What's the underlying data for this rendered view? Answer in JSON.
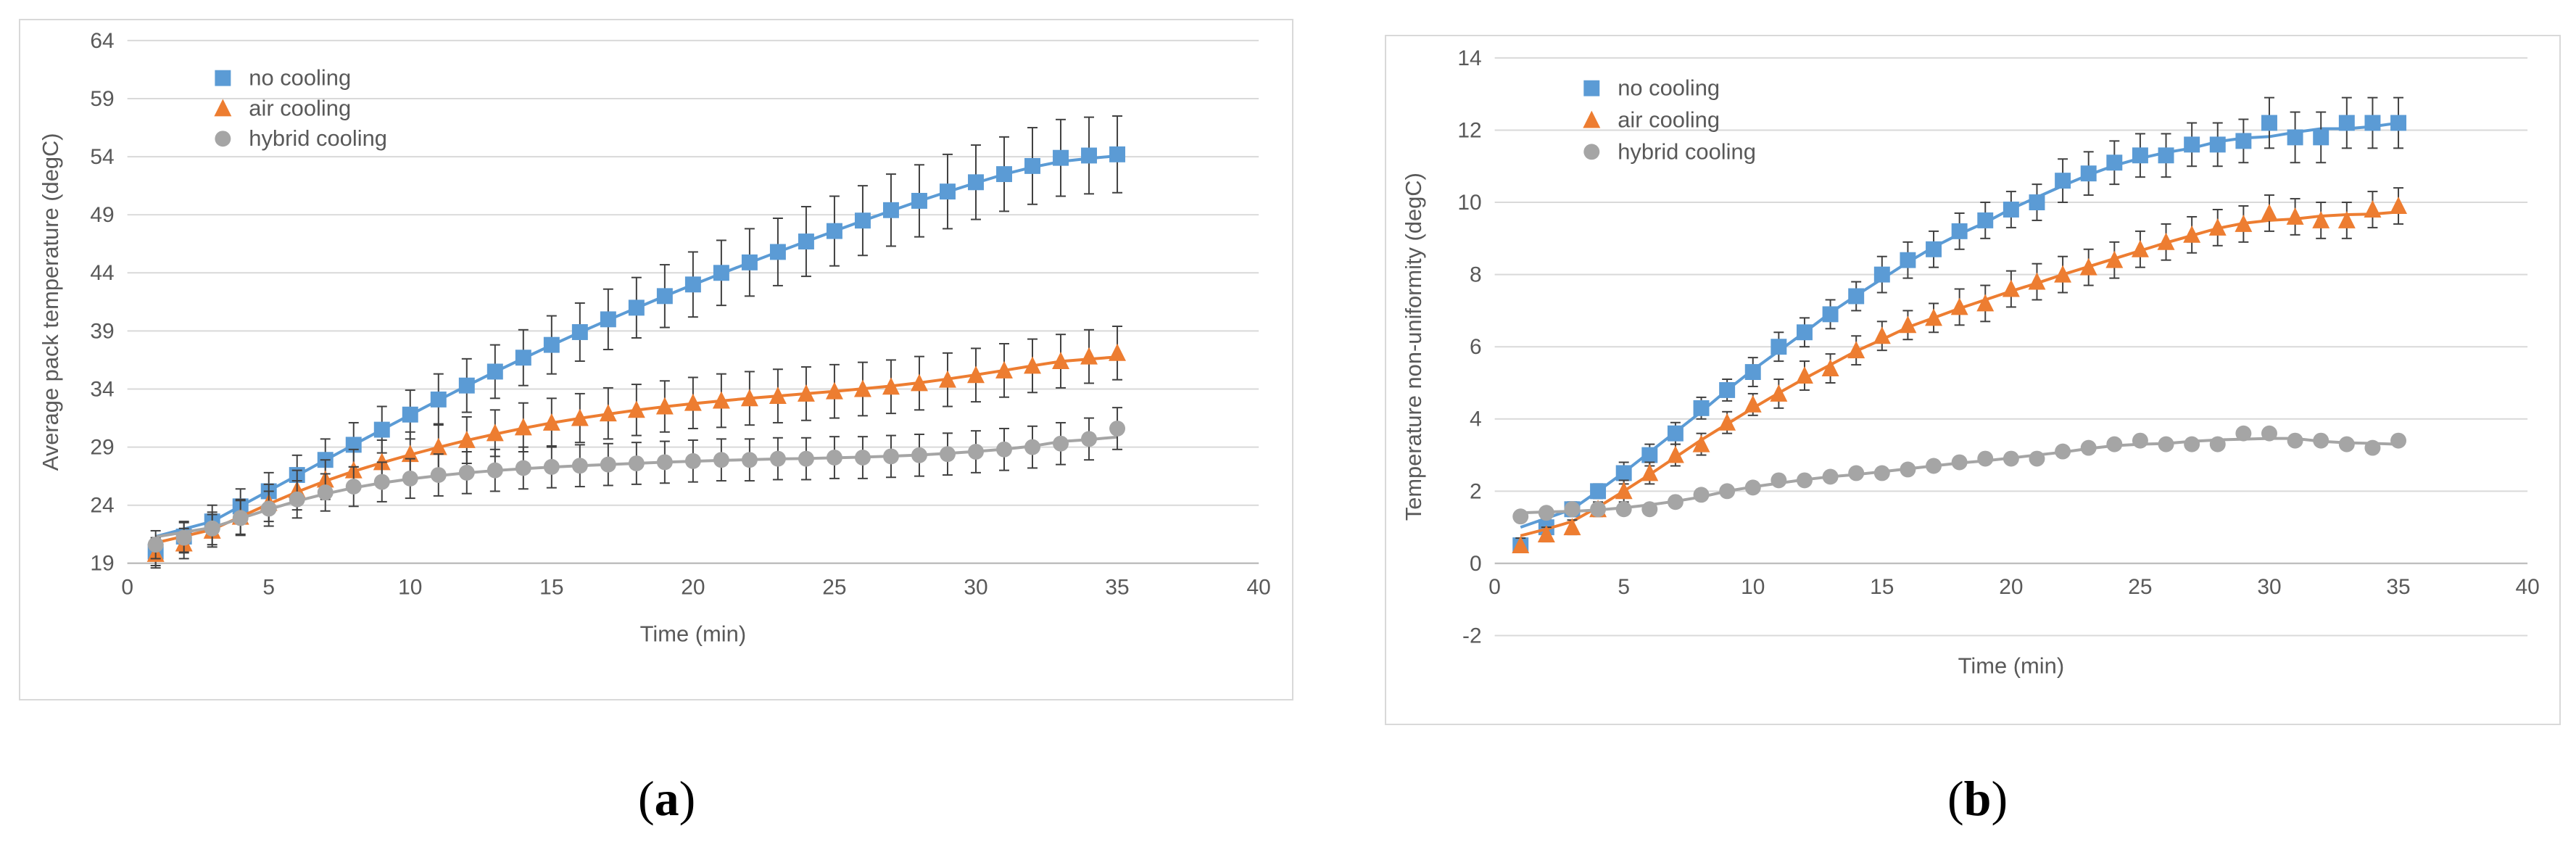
{
  "colors": {
    "no_cooling": "#5b9bd5",
    "air_cooling": "#ed7d31",
    "hybrid_cooling": "#a5a5a5",
    "grid": "#d9d9d9",
    "axis": "#bfbfbf",
    "errorbar": "#404040"
  },
  "captions": {
    "a": "a",
    "b": "b"
  },
  "chart_data": [
    {
      "id": "a",
      "type": "scatter",
      "title": "",
      "xlabel": "Time (min)",
      "ylabel": "Average pack temperature (degC)",
      "xlim": [
        0,
        40
      ],
      "ylim": [
        19,
        64
      ],
      "xticks": [
        0,
        5,
        10,
        15,
        20,
        25,
        30,
        35,
        40
      ],
      "yticks": [
        19,
        24,
        29,
        34,
        39,
        44,
        49,
        54,
        59,
        64
      ],
      "legend_position": "top-left",
      "x": [
        1,
        2,
        3,
        4,
        5,
        6,
        7,
        8,
        9,
        10,
        11,
        12,
        13,
        14,
        15,
        16,
        17,
        18,
        19,
        20,
        21,
        22,
        23,
        24,
        25,
        26,
        27,
        28,
        29,
        30,
        31,
        32,
        33,
        34,
        35
      ],
      "series": [
        {
          "name": "no cooling",
          "marker": "square",
          "values": [
            20,
            21.3,
            22.6,
            23.9,
            25.2,
            26.6,
            27.9,
            29.2,
            30.5,
            31.8,
            33.1,
            34.3,
            35.5,
            36.7,
            37.8,
            38.9,
            40.0,
            41.0,
            42.0,
            43.0,
            44.0,
            44.9,
            45.8,
            46.7,
            47.6,
            48.5,
            49.4,
            50.2,
            51.0,
            51.8,
            52.5,
            53.2,
            53.9,
            54.1,
            54.2
          ],
          "errors": [
            1.2,
            1.3,
            1.4,
            1.5,
            1.6,
            1.7,
            1.8,
            1.9,
            2.0,
            2.1,
            2.2,
            2.3,
            2.3,
            2.4,
            2.5,
            2.5,
            2.6,
            2.6,
            2.7,
            2.8,
            2.8,
            2.9,
            2.9,
            3.0,
            3.0,
            3.0,
            3.1,
            3.1,
            3.2,
            3.2,
            3.2,
            3.3,
            3.3,
            3.3,
            3.3
          ]
        },
        {
          "name": "air cooling",
          "marker": "triangle",
          "values": [
            19.8,
            20.7,
            21.8,
            23.0,
            24.2,
            25.3,
            26.2,
            27.0,
            27.7,
            28.4,
            29.0,
            29.6,
            30.2,
            30.7,
            31.1,
            31.5,
            31.9,
            32.2,
            32.5,
            32.8,
            33.0,
            33.2,
            33.4,
            33.6,
            33.8,
            34.0,
            34.2,
            34.5,
            34.8,
            35.2,
            35.6,
            36.0,
            36.4,
            36.8,
            37.1
          ],
          "errors": [
            1.2,
            1.3,
            1.4,
            1.5,
            1.6,
            1.7,
            1.7,
            1.8,
            1.9,
            1.9,
            2.0,
            2.0,
            2.0,
            2.1,
            2.1,
            2.1,
            2.2,
            2.2,
            2.2,
            2.2,
            2.3,
            2.3,
            2.3,
            2.3,
            2.3,
            2.3,
            2.3,
            2.3,
            2.3,
            2.3,
            2.3,
            2.3,
            2.3,
            2.3,
            2.3
          ]
        },
        {
          "name": "hybrid cooling",
          "marker": "circle",
          "values": [
            20.6,
            21.2,
            22.0,
            22.9,
            23.7,
            24.5,
            25.1,
            25.6,
            26.0,
            26.3,
            26.6,
            26.8,
            27.0,
            27.2,
            27.3,
            27.4,
            27.5,
            27.6,
            27.7,
            27.8,
            27.9,
            27.9,
            28.0,
            28.0,
            28.1,
            28.1,
            28.2,
            28.3,
            28.4,
            28.6,
            28.8,
            29.0,
            29.3,
            29.7,
            30.6
          ],
          "errors": [
            1.2,
            1.3,
            1.4,
            1.5,
            1.5,
            1.6,
            1.6,
            1.7,
            1.7,
            1.7,
            1.8,
            1.8,
            1.8,
            1.8,
            1.8,
            1.8,
            1.8,
            1.8,
            1.8,
            1.8,
            1.8,
            1.8,
            1.8,
            1.8,
            1.8,
            1.8,
            1.8,
            1.8,
            1.8,
            1.8,
            1.8,
            1.8,
            1.8,
            1.8,
            1.8
          ]
        }
      ]
    },
    {
      "id": "b",
      "type": "scatter",
      "title": "",
      "xlabel": "Time (min)",
      "ylabel": "Temperature non-uniformity (degC)",
      "xlim": [
        0,
        40
      ],
      "ylim": [
        -2,
        14
      ],
      "xticks": [
        0,
        5,
        10,
        15,
        20,
        25,
        30,
        35,
        40
      ],
      "yticks": [
        -2,
        0,
        2,
        4,
        6,
        8,
        10,
        12,
        14
      ],
      "legend_position": "top-left",
      "x": [
        1,
        2,
        3,
        4,
        5,
        6,
        7,
        8,
        9,
        10,
        11,
        12,
        13,
        14,
        15,
        16,
        17,
        18,
        19,
        20,
        21,
        22,
        23,
        24,
        25,
        26,
        27,
        28,
        29,
        30,
        31,
        32,
        33,
        34,
        35
      ],
      "series": [
        {
          "name": "no cooling",
          "marker": "square",
          "values": [
            0.5,
            1.0,
            1.5,
            2.0,
            2.5,
            3.0,
            3.6,
            4.3,
            4.8,
            5.3,
            6.0,
            6.4,
            6.9,
            7.4,
            8.0,
            8.4,
            8.7,
            9.2,
            9.5,
            9.8,
            10.0,
            10.6,
            10.8,
            11.1,
            11.3,
            11.3,
            11.6,
            11.6,
            11.7,
            12.2,
            11.8,
            11.8,
            12.2,
            12.2,
            12.2
          ],
          "errors": [
            0.2,
            0.2,
            0.2,
            0.2,
            0.3,
            0.3,
            0.3,
            0.3,
            0.3,
            0.4,
            0.4,
            0.4,
            0.4,
            0.4,
            0.5,
            0.5,
            0.5,
            0.5,
            0.5,
            0.5,
            0.5,
            0.6,
            0.6,
            0.6,
            0.6,
            0.6,
            0.6,
            0.6,
            0.6,
            0.7,
            0.7,
            0.7,
            0.7,
            0.7,
            0.7
          ]
        },
        {
          "name": "air cooling",
          "marker": "triangle",
          "values": [
            0.5,
            0.8,
            1.0,
            1.5,
            2.0,
            2.5,
            3.0,
            3.3,
            3.9,
            4.4,
            4.7,
            5.2,
            5.4,
            5.9,
            6.3,
            6.6,
            6.8,
            7.1,
            7.2,
            7.6,
            7.8,
            8.0,
            8.2,
            8.4,
            8.7,
            8.9,
            9.1,
            9.3,
            9.4,
            9.7,
            9.6,
            9.5,
            9.5,
            9.8,
            9.9
          ],
          "errors": [
            0.2,
            0.2,
            0.2,
            0.2,
            0.3,
            0.3,
            0.3,
            0.3,
            0.3,
            0.3,
            0.4,
            0.4,
            0.4,
            0.4,
            0.4,
            0.4,
            0.4,
            0.5,
            0.5,
            0.5,
            0.5,
            0.5,
            0.5,
            0.5,
            0.5,
            0.5,
            0.5,
            0.5,
            0.5,
            0.5,
            0.5,
            0.5,
            0.5,
            0.5,
            0.5
          ]
        },
        {
          "name": "hybrid cooling",
          "marker": "circle",
          "values": [
            1.3,
            1.4,
            1.5,
            1.5,
            1.5,
            1.5,
            1.7,
            1.9,
            2.0,
            2.1,
            2.3,
            2.3,
            2.4,
            2.5,
            2.5,
            2.6,
            2.7,
            2.8,
            2.9,
            2.9,
            2.9,
            3.1,
            3.2,
            3.3,
            3.4,
            3.3,
            3.3,
            3.3,
            3.6,
            3.6,
            3.4,
            3.4,
            3.3,
            3.2,
            3.4
          ],
          "errors": [
            0.1,
            0.1,
            0.1,
            0.1,
            0.1,
            0.1,
            0.1,
            0.1,
            0.1,
            0.1,
            0.1,
            0.1,
            0.1,
            0.1,
            0.1,
            0.1,
            0.1,
            0.1,
            0.1,
            0.1,
            0.1,
            0.1,
            0.1,
            0.1,
            0.1,
            0.1,
            0.1,
            0.1,
            0.1,
            0.1,
            0.1,
            0.1,
            0.1,
            0.1,
            0.1
          ]
        }
      ]
    }
  ]
}
